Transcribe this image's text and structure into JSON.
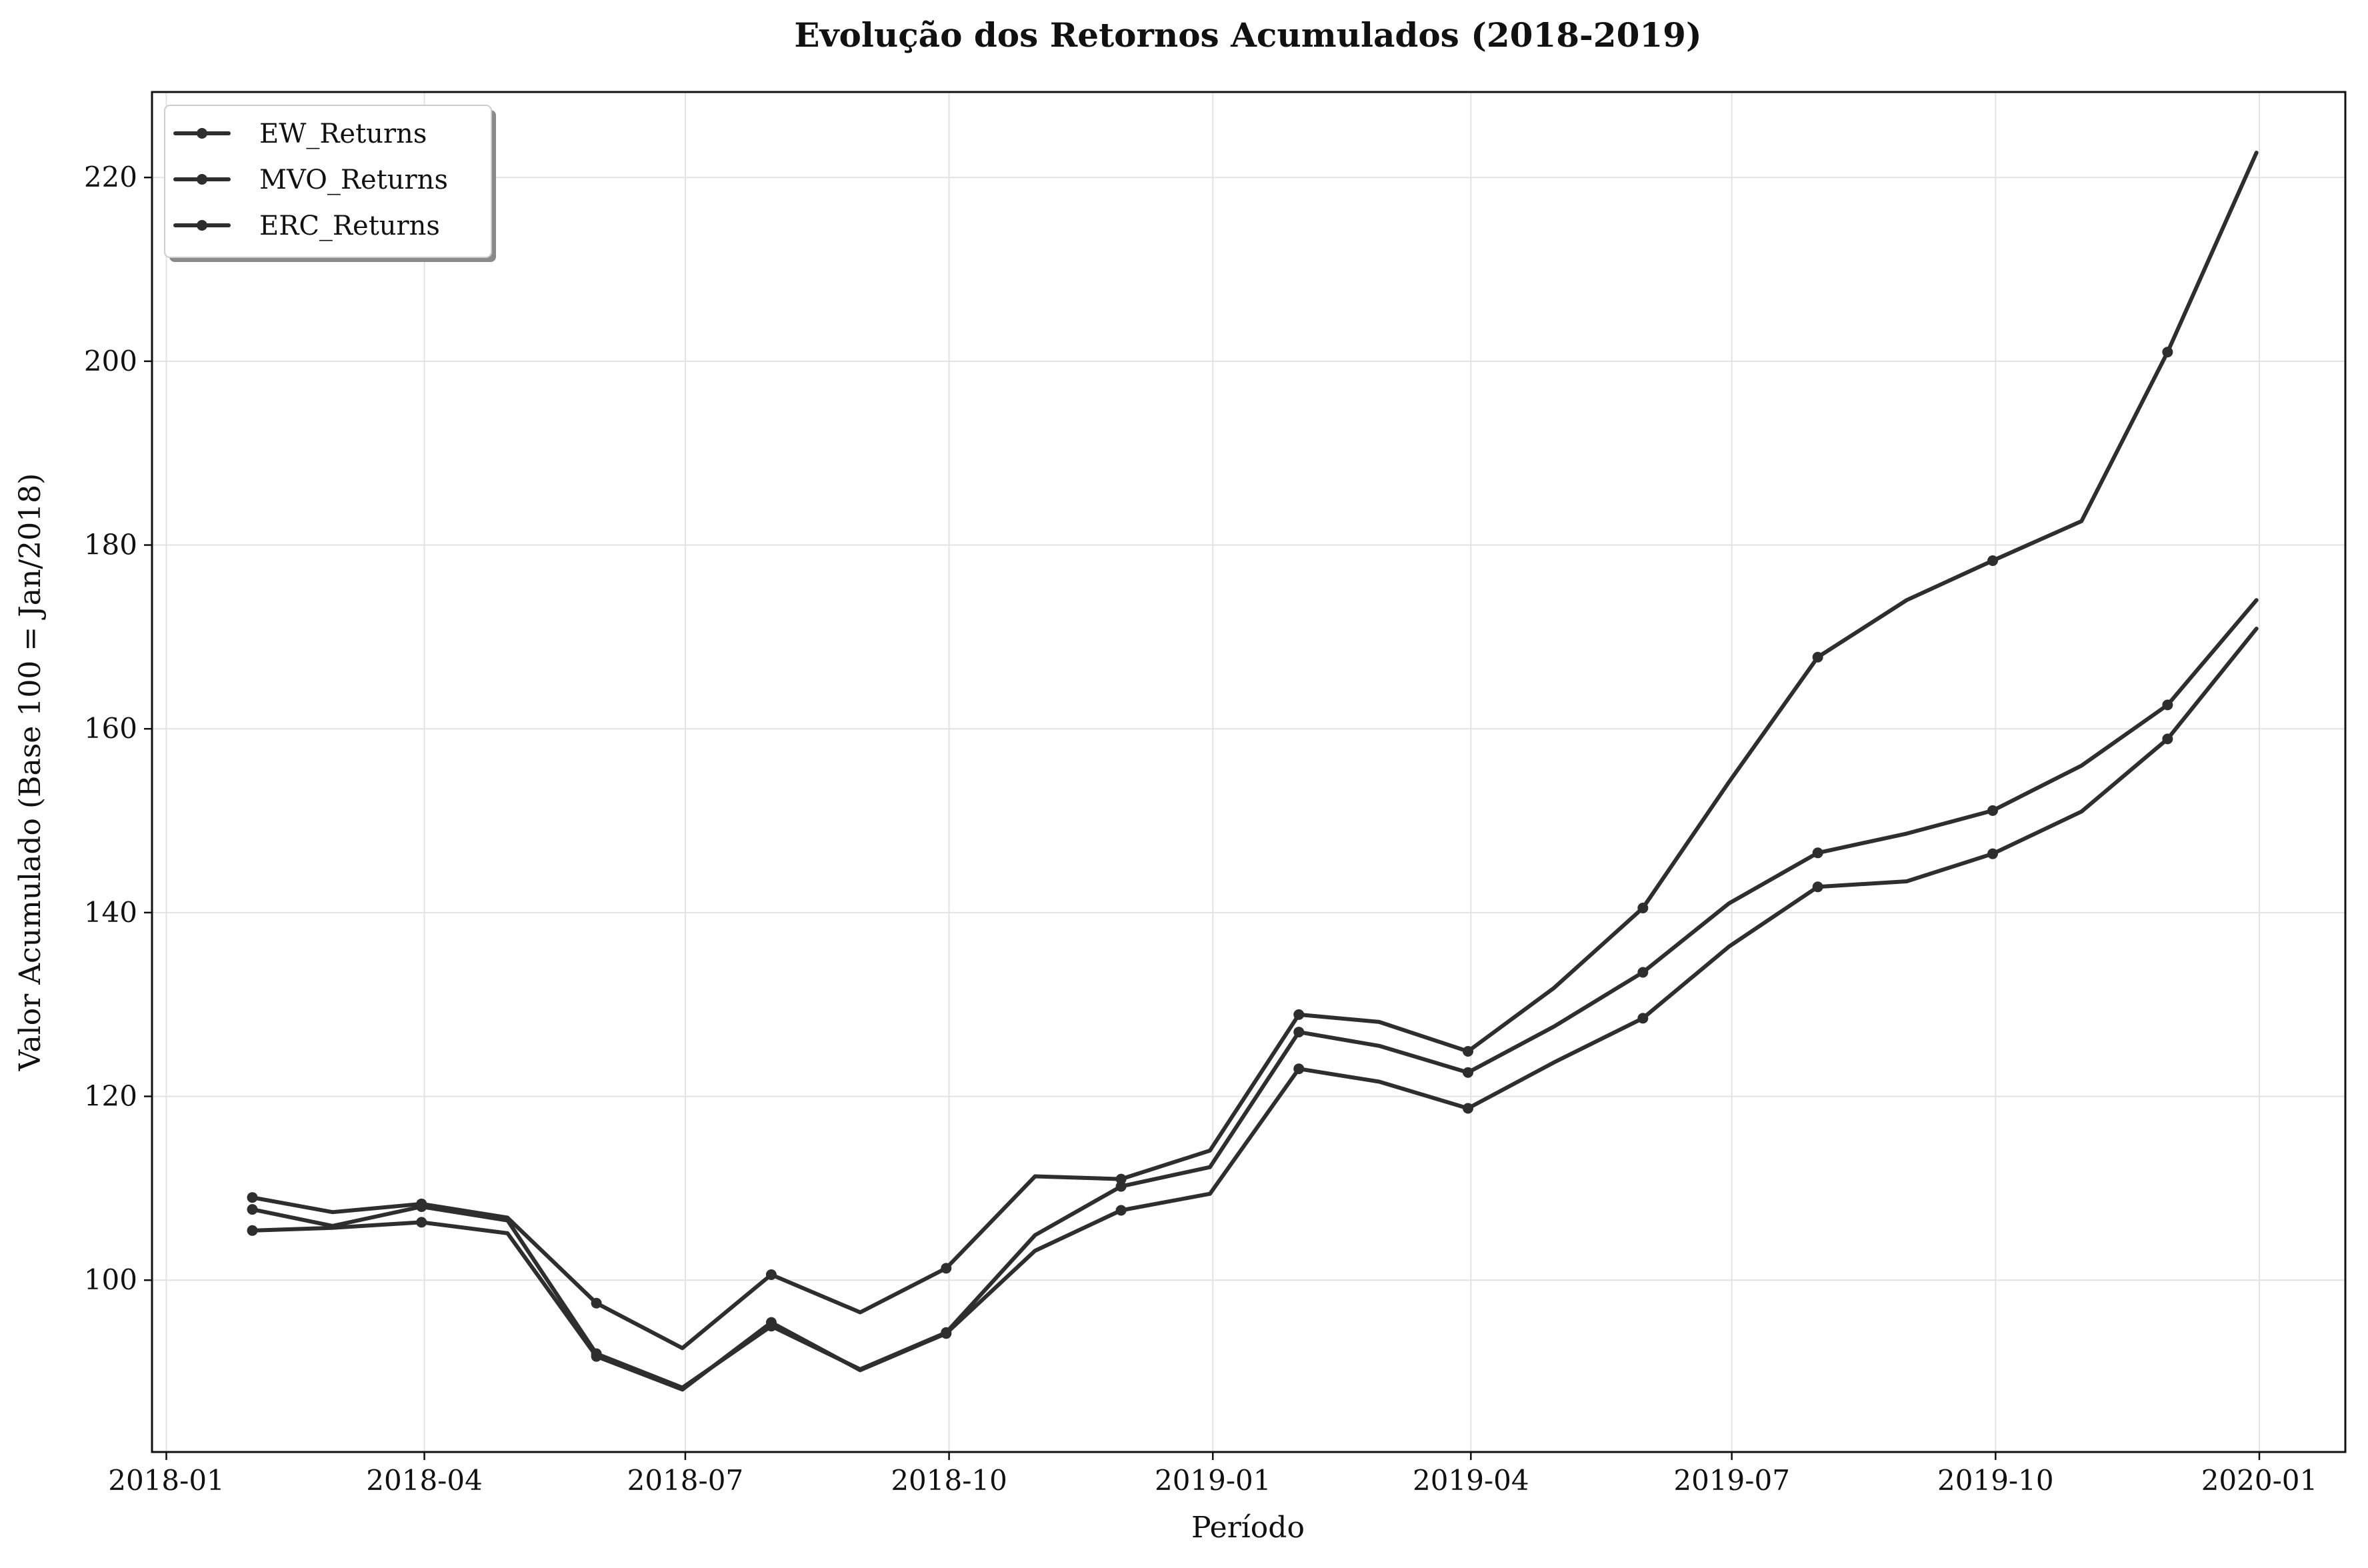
{
  "chart_data": {
    "type": "line",
    "title": "Evolução dos Retornos Acumulados (2018-2019)",
    "xlabel": "Período",
    "ylabel": "Valor Acumulado (Base 100 = Jan/2018)",
    "x": [
      "2018-01-31",
      "2018-02-28",
      "2018-03-31",
      "2018-04-30",
      "2018-05-31",
      "2018-06-30",
      "2018-07-31",
      "2018-08-31",
      "2018-09-30",
      "2018-10-31",
      "2018-11-30",
      "2018-12-31",
      "2019-01-31",
      "2019-02-28",
      "2019-03-31",
      "2019-04-30",
      "2019-05-31",
      "2019-06-30",
      "2019-07-31",
      "2019-08-31",
      "2019-09-30",
      "2019-10-31",
      "2019-11-30",
      "2019-12-31"
    ],
    "marker_every": 2,
    "series": [
      {
        "name": "EW_Returns",
        "values": [
          107.7,
          105.9,
          108.0,
          106.5,
          92.0,
          88.3,
          95.0,
          90.3,
          94.3,
          104.9,
          110.2,
          112.3,
          127.0,
          125.5,
          122.6,
          127.6,
          133.5,
          141.0,
          146.5,
          148.6,
          151.1,
          156.0,
          162.6,
          174.0
        ]
      },
      {
        "name": "MVO_Returns",
        "values": [
          109.0,
          107.4,
          108.3,
          106.8,
          97.5,
          92.6,
          100.6,
          96.5,
          101.3,
          111.3,
          111.0,
          114.1,
          128.9,
          128.1,
          124.9,
          131.8,
          140.5,
          154.2,
          167.8,
          174.0,
          178.3,
          182.6,
          201.0,
          222.7
        ]
      },
      {
        "name": "ERC_Returns",
        "values": [
          105.4,
          105.7,
          106.3,
          105.1,
          91.7,
          88.1,
          95.4,
          90.2,
          94.2,
          103.2,
          107.6,
          109.4,
          123.0,
          121.6,
          118.7,
          123.7,
          128.5,
          136.3,
          142.8,
          143.4,
          146.4,
          151.0,
          158.9,
          170.9
        ]
      }
    ],
    "x_ticks": [
      "2018-01",
      "2018-04",
      "2018-07",
      "2018-10",
      "2019-01",
      "2019-04",
      "2019-07",
      "2019-10",
      "2020-01"
    ],
    "y_ticks": [
      100,
      120,
      140,
      160,
      180,
      200,
      220
    ],
    "xlim": [
      "2017-12-27",
      "2020-01-31"
    ],
    "ylim": [
      81.3,
      229.3
    ],
    "grid": true,
    "legend_position": "top-left",
    "line_color": "#2e2e2e"
  }
}
